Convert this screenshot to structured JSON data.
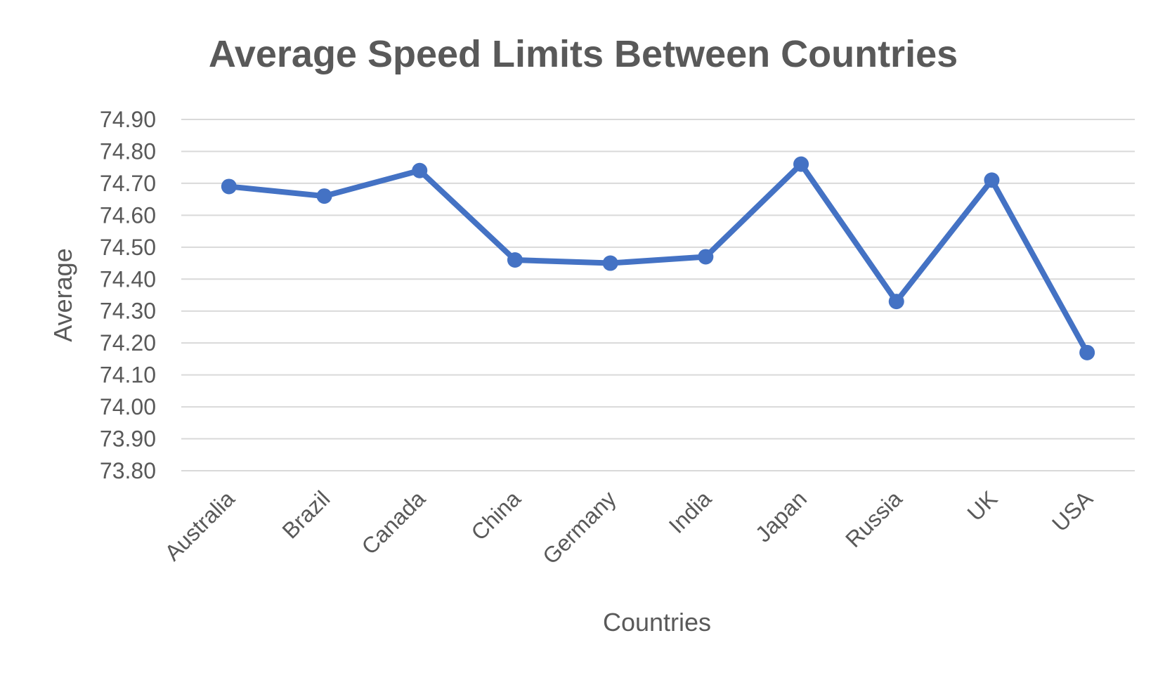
{
  "chart_data": {
    "type": "line",
    "title": "Average Speed Limits Between Countries",
    "xlabel": "Countries",
    "ylabel": "Average",
    "categories": [
      "Australia",
      "Brazil",
      "Canada",
      "China",
      "Germany",
      "India",
      "Japan",
      "Russia",
      "UK",
      "USA"
    ],
    "series": [
      {
        "values": [
          74.69,
          74.66,
          74.74,
          74.46,
          74.45,
          74.47,
          74.76,
          74.33,
          74.71,
          74.17
        ],
        "color": "#4472c4"
      }
    ],
    "ylim": [
      73.8,
      74.9
    ],
    "yticks": [
      "74.90",
      "74.80",
      "74.70",
      "74.60",
      "74.50",
      "74.40",
      "74.30",
      "74.20",
      "74.10",
      "74.00",
      "73.90",
      "73.80"
    ],
    "grid": true,
    "legend": "none",
    "gridline_color": "#d9d9d9",
    "text_color": "#595959"
  }
}
